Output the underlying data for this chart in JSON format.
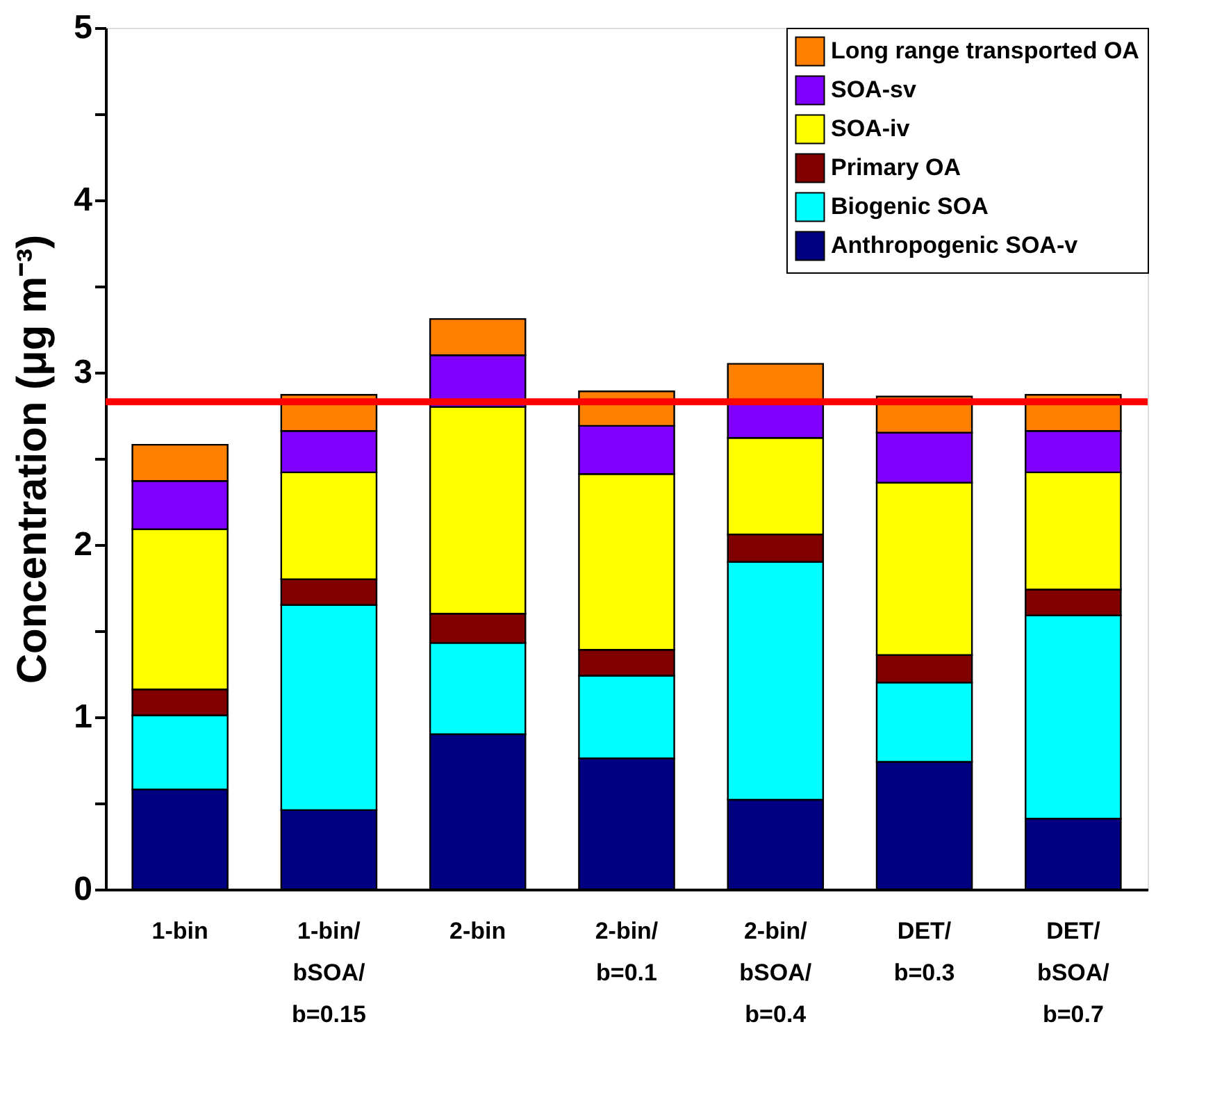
{
  "chart_data": {
    "type": "bar",
    "stacked": true,
    "ylabel": "Concentration (μg m⁻³)",
    "categories": [
      "1-bin",
      "1-bin/bSOA/b=0.15",
      "2-bin",
      "2-bin/b=0.1",
      "2-bin/bSOA/b=0.4",
      "DET/b=0.3",
      "DET/bSOA/b=0.7"
    ],
    "series": [
      {
        "name": "Anthropogenic SOA-v",
        "color": "#000080",
        "values": [
          0.58,
          0.46,
          0.9,
          0.76,
          0.52,
          0.74,
          0.41
        ]
      },
      {
        "name": "Biogenic SOA",
        "color": "#00ffff",
        "values": [
          0.43,
          1.19,
          0.53,
          0.48,
          1.38,
          0.46,
          1.18
        ]
      },
      {
        "name": "Primary OA",
        "color": "#800000",
        "values": [
          0.15,
          0.15,
          0.17,
          0.15,
          0.16,
          0.16,
          0.15
        ]
      },
      {
        "name": "SOA-iv",
        "color": "#ffff00",
        "values": [
          0.93,
          0.62,
          1.2,
          1.02,
          0.56,
          1.0,
          0.68
        ]
      },
      {
        "name": "SOA-sv",
        "color": "#8000ff",
        "values": [
          0.28,
          0.24,
          0.3,
          0.28,
          0.22,
          0.29,
          0.24
        ]
      },
      {
        "name": "Long range transported OA",
        "color": "#ff8000",
        "values": [
          0.21,
          0.21,
          0.21,
          0.2,
          0.21,
          0.21,
          0.21
        ]
      }
    ],
    "ylim": [
      0,
      5
    ],
    "yticks": [
      0,
      {
        "value": 0.5,
        "label": null
      },
      1,
      {
        "value": 1.5,
        "label": null
      },
      2,
      {
        "value": 2.5,
        "label": null
      },
      3,
      {
        "value": 3.5,
        "label": null
      },
      4,
      {
        "value": 4.5,
        "label": null
      },
      5
    ],
    "ref_lines": [
      {
        "axis": "y",
        "value": 2.83,
        "color": "#ff0000"
      }
    ],
    "legend": "top right",
    "grid": false
  }
}
